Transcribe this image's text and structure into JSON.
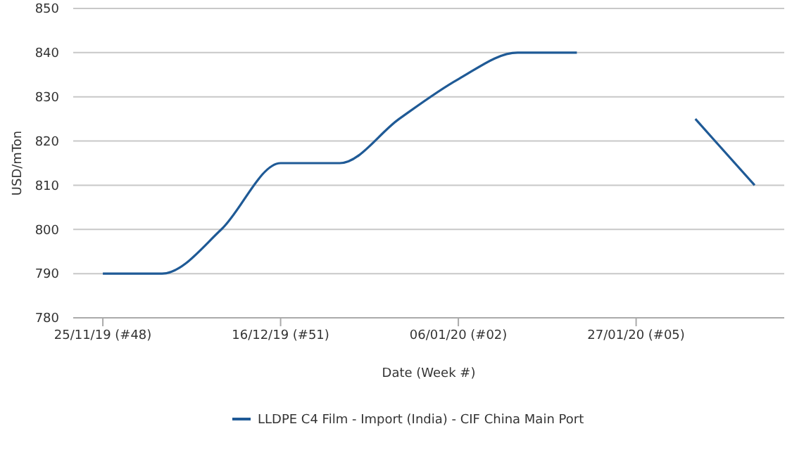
{
  "chart_data": {
    "type": "line",
    "xlabel": "Date (Week #)",
    "ylabel": "USD/mTon",
    "categories": [
      "25/11/19 (#48)",
      null,
      null,
      "16/12/19 (#51)",
      null,
      null,
      "06/01/20 (#02)",
      null,
      null,
      "27/01/20 (#05)",
      null,
      null
    ],
    "series": [
      {
        "name": "LLDPE C4 Film - Import (India) - CIF China Main Port",
        "color": "#1f5a96",
        "values": [
          790,
          790,
          800,
          815,
          815,
          825,
          834,
          840,
          840,
          null,
          825,
          810
        ]
      }
    ],
    "ylim": [
      780,
      850
    ],
    "yticks": [
      780,
      790,
      800,
      810,
      820,
      830,
      840,
      850
    ],
    "grid": "y",
    "legend": "bottom",
    "marker": "none",
    "line_style": "solid"
  }
}
